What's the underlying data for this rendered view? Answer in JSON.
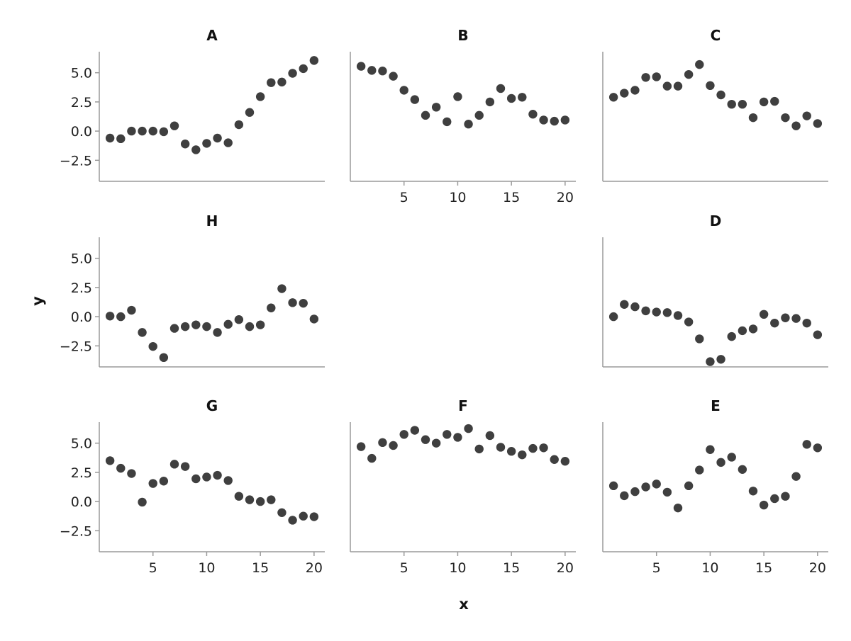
{
  "chart_data": {
    "type": "scatter",
    "xlabel": "x",
    "ylabel": "y",
    "xlim": [
      0,
      21
    ],
    "ylim": [
      -4.3,
      6.8
    ],
    "yticks": [
      5.0,
      2.5,
      0.0,
      -2.5
    ],
    "ytick_labels": [
      "5.0",
      "2.5",
      "0.0",
      "−2.5"
    ],
    "xticks": [
      5,
      10,
      15,
      20
    ],
    "xtick_labels": [
      "5",
      "10",
      "15",
      "20"
    ],
    "point_color": "#3f3f3f",
    "x": [
      1,
      2,
      3,
      4,
      5,
      6,
      7,
      8,
      9,
      10,
      11,
      12,
      13,
      14,
      15,
      16,
      17,
      18,
      19,
      20
    ],
    "panels": [
      {
        "name": "A",
        "values": [
          -0.6,
          -0.65,
          0.0,
          0.0,
          0.0,
          -0.05,
          0.45,
          -1.1,
          -1.6,
          -1.05,
          -0.6,
          -1.0,
          0.55,
          1.6,
          2.95,
          4.15,
          4.2,
          4.95,
          5.35,
          6.05
        ]
      },
      {
        "name": "B",
        "values": [
          5.55,
          5.2,
          5.15,
          4.7,
          3.5,
          2.7,
          1.35,
          2.05,
          0.8,
          2.95,
          0.6,
          1.35,
          2.5,
          3.65,
          2.8,
          2.9,
          1.45,
          0.95,
          0.85,
          0.95
        ]
      },
      {
        "name": "C",
        "values": [
          2.9,
          3.25,
          3.5,
          4.6,
          4.65,
          3.85,
          3.85,
          4.85,
          5.7,
          3.9,
          3.1,
          2.3,
          2.3,
          1.15,
          2.5,
          2.55,
          1.15,
          0.45,
          1.3,
          0.65
        ]
      },
      {
        "name": "H",
        "values": [
          0.05,
          0.0,
          0.55,
          -1.35,
          -2.55,
          -3.5,
          -1.0,
          -0.85,
          -0.7,
          -0.85,
          -1.35,
          -0.65,
          -0.25,
          -0.85,
          -0.7,
          0.75,
          2.4,
          1.2,
          1.15,
          -0.2
        ]
      },
      {
        "name": "D",
        "values": [
          0.0,
          1.05,
          0.85,
          0.5,
          0.4,
          0.35,
          0.1,
          -0.45,
          -1.9,
          -3.85,
          -3.65,
          -1.7,
          -1.2,
          -1.05,
          0.2,
          -0.55,
          -0.1,
          -0.15,
          -0.55,
          -1.55
        ]
      },
      {
        "name": "G",
        "values": [
          3.5,
          2.85,
          2.4,
          -0.05,
          1.55,
          1.75,
          3.2,
          3.0,
          1.95,
          2.1,
          2.25,
          1.8,
          0.45,
          0.15,
          0.0,
          0.15,
          -0.95,
          -1.6,
          -1.25,
          -1.3
        ]
      },
      {
        "name": "F",
        "values": [
          4.7,
          3.7,
          5.05,
          4.8,
          5.75,
          6.1,
          5.3,
          5.0,
          5.75,
          5.5,
          6.25,
          4.5,
          5.65,
          4.65,
          4.3,
          4.0,
          4.55,
          4.6,
          3.6,
          3.45
        ]
      },
      {
        "name": "E",
        "values": [
          1.35,
          0.5,
          0.85,
          1.25,
          1.5,
          0.8,
          -0.55,
          1.35,
          2.7,
          4.45,
          3.35,
          3.8,
          2.75,
          0.9,
          -0.3,
          0.25,
          0.45,
          2.15,
          4.9,
          4.6
        ]
      }
    ]
  }
}
